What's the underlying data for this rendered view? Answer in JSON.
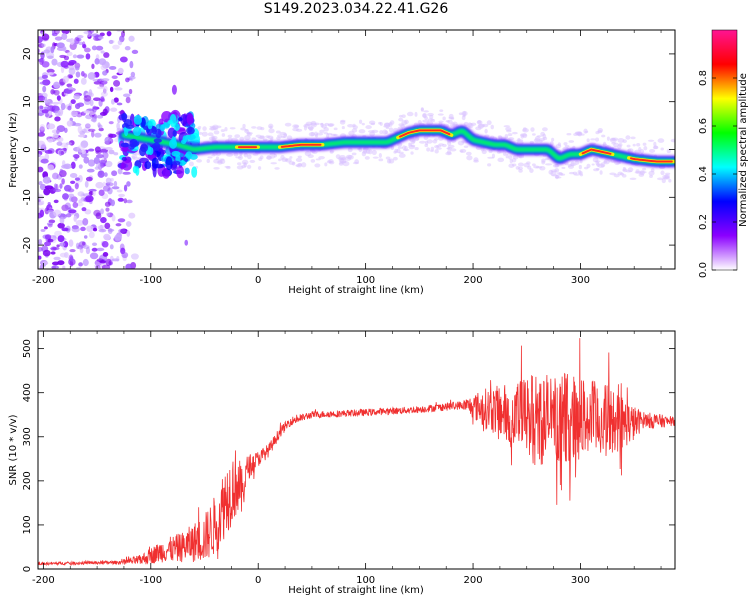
{
  "page": {
    "title": "S149.2023.034.22.41.G26"
  },
  "chart_data": [
    {
      "id": "spectrogram",
      "type": "heatmap",
      "xlabel": "Height of straight line (km)",
      "ylabel": "Frequency (Hz)",
      "xlim": [
        -205,
        388
      ],
      "ylim": [
        -25,
        25
      ],
      "xticks": [
        -200,
        -100,
        0,
        100,
        200,
        300
      ],
      "yticks": [
        -20,
        -10,
        0,
        10,
        20
      ],
      "colorbar": {
        "label": "Normalized spectral amplitude",
        "range": [
          0,
          1
        ],
        "ticks": [
          "0.0",
          "0.2",
          "0.4",
          "0.6",
          "0.8"
        ],
        "colors": [
          "#ffffff",
          "#8b00ff",
          "#0000ff",
          "#00ffff",
          "#00ff00",
          "#ffff00",
          "#ff0000",
          "#ff1493"
        ]
      },
      "ridge": {
        "x": [
          -125,
          -100,
          -75,
          -60,
          -40,
          -20,
          0,
          20,
          40,
          60,
          80,
          100,
          120,
          130,
          140,
          150,
          160,
          170,
          180,
          190,
          200,
          210,
          220,
          230,
          240,
          250,
          260,
          270,
          280,
          290,
          300,
          310,
          320,
          330,
          340,
          350,
          370,
          388
        ],
        "y": [
          3,
          2,
          1,
          0,
          0.5,
          0.5,
          0.5,
          0.5,
          1,
          1,
          1.5,
          1.5,
          1.5,
          2.5,
          3.5,
          4,
          4,
          4,
          3,
          4,
          2,
          1.5,
          1,
          1,
          0,
          0,
          0,
          0,
          -2,
          -1,
          -1,
          0,
          -0.5,
          -1,
          -1.5,
          -2,
          -2.5,
          -2.5
        ],
        "peak_intervals": [
          [
            -20,
            0
          ],
          [
            20,
            60
          ],
          [
            130,
            180
          ],
          [
            300,
            330
          ],
          [
            345,
            388
          ]
        ]
      }
    },
    {
      "id": "snr",
      "type": "line",
      "xlabel": "Height of straight line (km)",
      "ylabel": "SNR (10 * v/v)",
      "xlim": [
        -205,
        388
      ],
      "ylim": [
        0,
        540
      ],
      "xticks": [
        -200,
        -100,
        0,
        100,
        200,
        300
      ],
      "yticks": [
        0,
        100,
        200,
        300,
        400,
        500
      ],
      "line_color": "#f03030",
      "envelope": {
        "x": [
          -205,
          -130,
          -110,
          -90,
          -70,
          -50,
          -40,
          -30,
          -20,
          -15,
          -10,
          0,
          10,
          20,
          30,
          50,
          100,
          150,
          190,
          210,
          240,
          260,
          290,
          330,
          350,
          360,
          370,
          380,
          388
        ],
        "mean": [
          12,
          15,
          20,
          40,
          50,
          70,
          100,
          160,
          200,
          170,
          230,
          250,
          270,
          310,
          335,
          350,
          355,
          362,
          372,
          365,
          350,
          340,
          345,
          335,
          330,
          340,
          335,
          335,
          335
        ],
        "spread": [
          3,
          4,
          12,
          25,
          35,
          55,
          70,
          85,
          80,
          55,
          30,
          18,
          15,
          12,
          10,
          8,
          8,
          8,
          10,
          45,
          75,
          110,
          100,
          80,
          40,
          15,
          20,
          12,
          10
        ]
      }
    }
  ]
}
